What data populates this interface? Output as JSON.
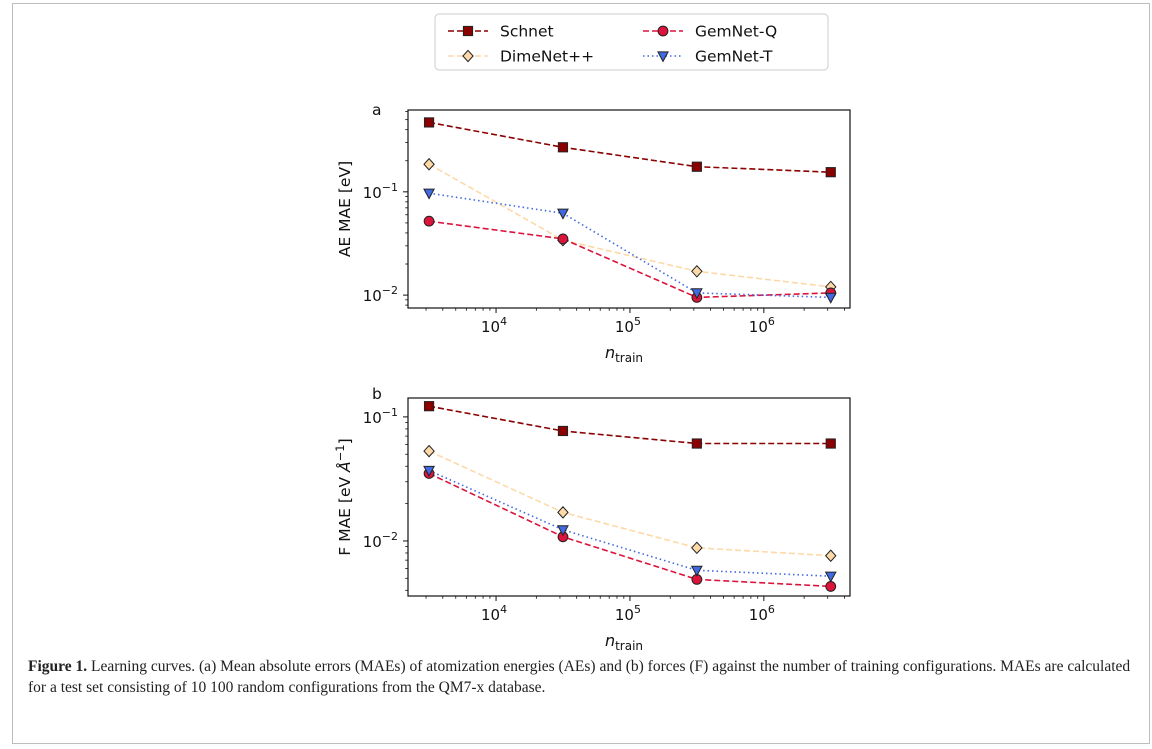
{
  "caption": {
    "label": "Figure 1.",
    "text": "Learning curves. (a) Mean absolute errors (MAEs) of atomization energies (AEs) and (b) forces (F) against the number of training configurations. MAEs are calculated for a test set consisting of 10 100 random configurations from the QM7-x database."
  },
  "legend": [
    {
      "name": "Schnet",
      "color": "#8b0000",
      "marker": "square",
      "dash": "dashed",
      "alpha": 1.0
    },
    {
      "name": "DimeNet++",
      "color": "#fdd9a8",
      "marker": "diamond",
      "dash": "dashed",
      "alpha": 1.0
    },
    {
      "name": "GemNet-Q",
      "color": "#dc143c",
      "marker": "circle",
      "dash": "dashed",
      "alpha": 1.0
    },
    {
      "name": "GemNet-T",
      "color": "#4169e1",
      "marker": "triangle-down",
      "dash": "dotted",
      "alpha": 1.0
    }
  ],
  "chart_data": [
    {
      "type": "line",
      "panel_label": "a",
      "xlabel": "n_train",
      "xlabel_main": "n",
      "xlabel_sub": "train",
      "ylabel": "AE MAE [eV]",
      "xscale": "log",
      "yscale": "log",
      "xlim": [
        2200,
        4400000
      ],
      "ylim": [
        0.0075,
        0.62
      ],
      "x_ticks": [
        {
          "value": 10000,
          "base": "10",
          "exp": "4"
        },
        {
          "value": 100000,
          "base": "10",
          "exp": "5"
        },
        {
          "value": 1000000,
          "base": "10",
          "exp": "6"
        }
      ],
      "y_ticks": [
        {
          "value": 0.01,
          "base": "10",
          "exp": "−2"
        },
        {
          "value": 0.1,
          "base": "10",
          "exp": "−1"
        }
      ],
      "x": [
        3160,
        31600,
        316000,
        3160000
      ],
      "series": [
        {
          "name": "Schnet",
          "values": [
            0.47,
            0.27,
            0.175,
            0.155
          ]
        },
        {
          "name": "DimeNet++",
          "values": [
            0.185,
            0.034,
            0.017,
            0.012
          ]
        },
        {
          "name": "GemNet-Q",
          "values": [
            0.052,
            0.035,
            0.0095,
            0.0105
          ]
        },
        {
          "name": "GemNet-T",
          "values": [
            0.097,
            0.062,
            0.0105,
            0.0095
          ]
        }
      ]
    },
    {
      "type": "line",
      "panel_label": "b",
      "xlabel": "n_train",
      "xlabel_main": "n",
      "xlabel_sub": "train",
      "ylabel": "F MAE [eV Å^-1]",
      "ylabel_main": "F MAE [eV ",
      "ylabel_italic": "Å",
      "ylabel_sup": "−1",
      "ylabel_end": "]",
      "xscale": "log",
      "yscale": "log",
      "xlim": [
        2200,
        4400000
      ],
      "ylim": [
        0.0036,
        0.142
      ],
      "x_ticks": [
        {
          "value": 10000,
          "base": "10",
          "exp": "4"
        },
        {
          "value": 100000,
          "base": "10",
          "exp": "5"
        },
        {
          "value": 1000000,
          "base": "10",
          "exp": "6"
        }
      ],
      "y_ticks": [
        {
          "value": 0.01,
          "base": "10",
          "exp": "−2"
        },
        {
          "value": 0.1,
          "base": "10",
          "exp": "−1"
        }
      ],
      "x": [
        3160,
        31600,
        316000,
        3160000
      ],
      "series": [
        {
          "name": "Schnet",
          "values": [
            0.122,
            0.077,
            0.061,
            0.061
          ]
        },
        {
          "name": "DimeNet++",
          "values": [
            0.053,
            0.017,
            0.0088,
            0.0076
          ]
        },
        {
          "name": "GemNet-Q",
          "values": [
            0.035,
            0.0108,
            0.0049,
            0.0043
          ]
        },
        {
          "name": "GemNet-T",
          "values": [
            0.037,
            0.0123,
            0.0058,
            0.0052
          ]
        }
      ]
    }
  ]
}
